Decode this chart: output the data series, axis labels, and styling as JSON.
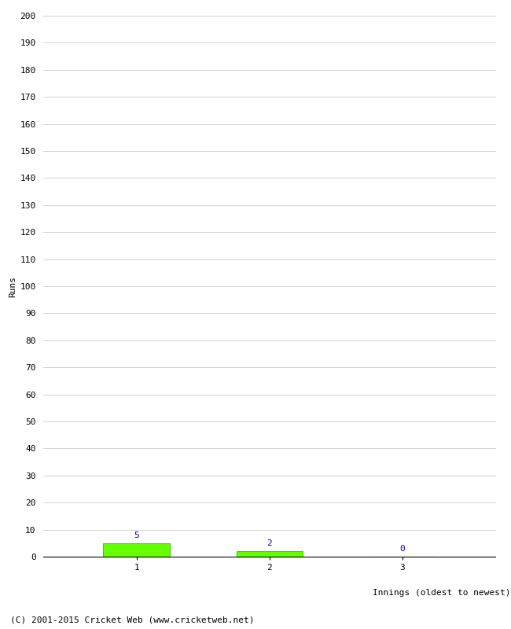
{
  "categories": [
    "1",
    "2",
    "3"
  ],
  "values": [
    5,
    2,
    0
  ],
  "bar_color": "#66ff00",
  "bar_edge_color": "#44cc00",
  "ylabel": "Runs",
  "xlabel": "Innings (oldest to newest)",
  "ylim": [
    0,
    200
  ],
  "ytick_step": 10,
  "background_color": "#ffffff",
  "grid_color": "#cccccc",
  "label_color": "#0000cc",
  "footer_text": "(C) 2001-2015 Cricket Web (www.cricketweb.net)",
  "bar_width": 0.5,
  "font_family": "monospace",
  "font_size": 8
}
